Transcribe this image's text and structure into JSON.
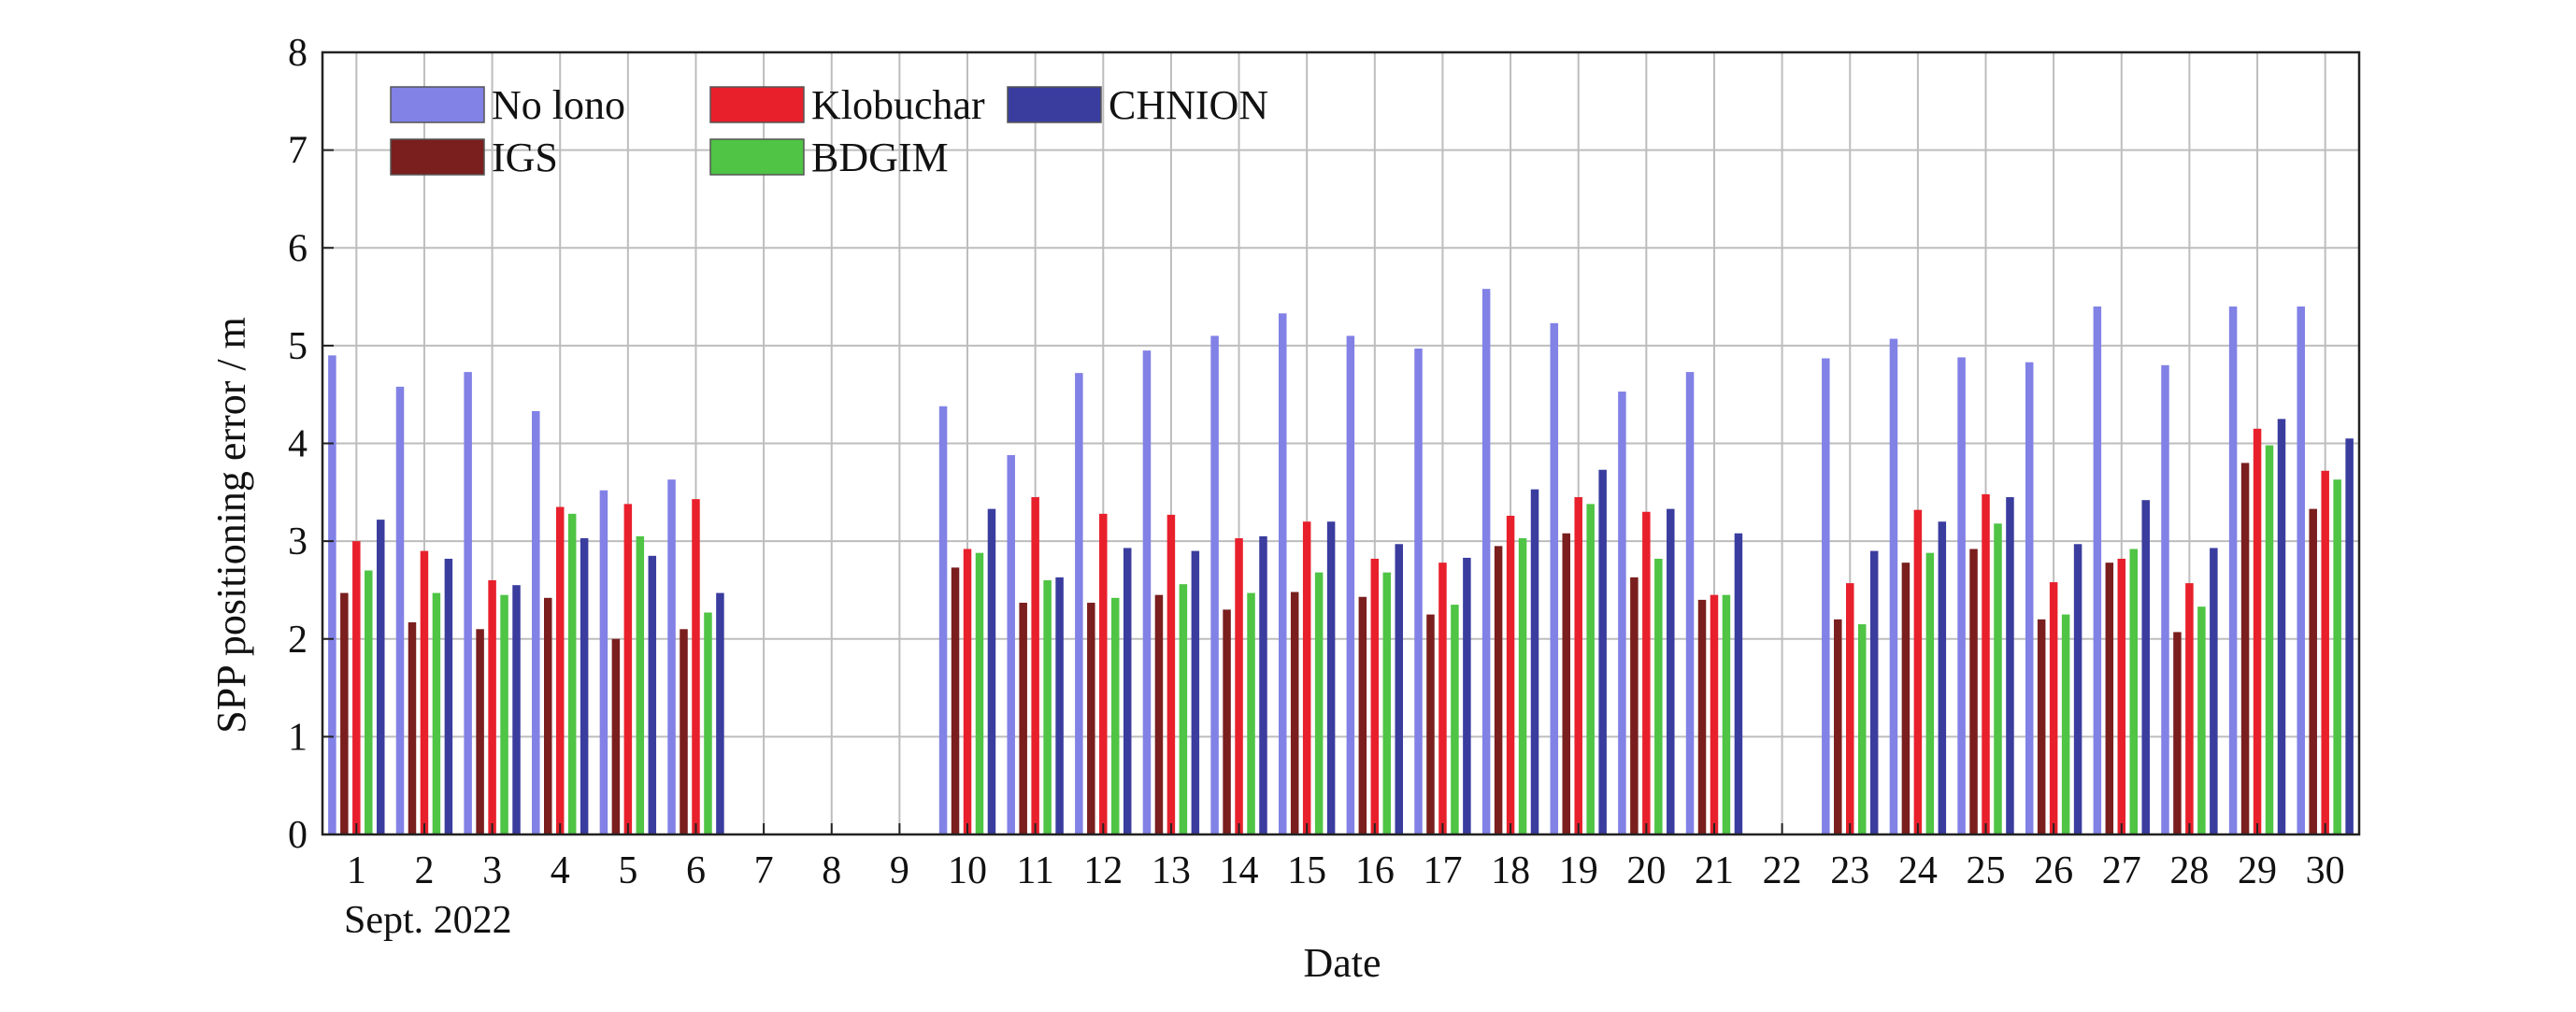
{
  "chart_data": {
    "type": "bar",
    "xlabel": "Date",
    "ylabel": "SPP positioning error / m",
    "x_sublabel": "Sept. 2022",
    "ylim": [
      0,
      8
    ],
    "yticks": [
      "0",
      "1",
      "2",
      "3",
      "4",
      "5",
      "6",
      "7",
      "8"
    ],
    "grid": true,
    "legend_position": "top-left",
    "categories": [
      "1",
      "2",
      "3",
      "4",
      "5",
      "6",
      "7",
      "8",
      "9",
      "10",
      "11",
      "12",
      "13",
      "14",
      "15",
      "16",
      "17",
      "18",
      "19",
      "20",
      "21",
      "22",
      "23",
      "24",
      "25",
      "26",
      "27",
      "28",
      "29",
      "30"
    ],
    "series": [
      {
        "name": "No lono",
        "color": "#8181e6",
        "values": [
          4.9,
          4.58,
          4.73,
          4.33,
          3.52,
          3.63,
          null,
          null,
          null,
          4.38,
          3.88,
          4.72,
          4.95,
          5.1,
          5.33,
          5.1,
          4.97,
          5.58,
          5.23,
          4.53,
          4.73,
          null,
          4.87,
          5.07,
          4.88,
          4.83,
          5.4,
          4.8,
          5.4,
          5.4
        ]
      },
      {
        "name": "IGS",
        "color": "#7a1e1e",
        "values": [
          2.47,
          2.17,
          2.1,
          2.42,
          2.0,
          2.1,
          null,
          null,
          null,
          2.73,
          2.37,
          2.37,
          2.45,
          2.3,
          2.48,
          2.43,
          2.25,
          2.95,
          3.08,
          2.63,
          2.4,
          null,
          2.2,
          2.78,
          2.92,
          2.2,
          2.78,
          2.07,
          3.8,
          3.33
        ]
      },
      {
        "name": "Klobuchar",
        "color": "#e8202c",
        "values": [
          3.0,
          2.9,
          2.6,
          3.35,
          3.38,
          3.43,
          null,
          null,
          null,
          2.92,
          3.45,
          3.28,
          3.27,
          3.03,
          3.2,
          2.82,
          2.78,
          3.26,
          3.45,
          3.3,
          2.45,
          null,
          2.57,
          3.32,
          3.48,
          2.58,
          2.82,
          2.57,
          4.15,
          3.72
        ]
      },
      {
        "name": "BDGIM",
        "color": "#4fc445",
        "values": [
          2.7,
          2.47,
          2.45,
          3.28,
          3.05,
          2.27,
          null,
          null,
          null,
          2.88,
          2.6,
          2.42,
          2.56,
          2.47,
          2.68,
          2.68,
          2.35,
          3.03,
          3.38,
          2.82,
          2.45,
          null,
          2.15,
          2.88,
          3.18,
          2.25,
          2.92,
          2.33,
          3.98,
          3.63
        ]
      },
      {
        "name": "CHNION",
        "color": "#3a3d9e",
        "values": [
          3.22,
          2.82,
          2.55,
          3.03,
          2.85,
          2.47,
          null,
          null,
          null,
          3.33,
          2.63,
          2.93,
          2.9,
          3.05,
          3.2,
          2.97,
          2.83,
          3.53,
          3.73,
          3.33,
          3.08,
          null,
          2.9,
          3.2,
          3.45,
          2.97,
          3.42,
          2.93,
          4.25,
          4.05
        ]
      }
    ],
    "legend_rows": [
      [
        "No lono",
        "Klobuchar",
        "CHNION"
      ],
      [
        "IGS",
        "BDGIM"
      ]
    ]
  }
}
